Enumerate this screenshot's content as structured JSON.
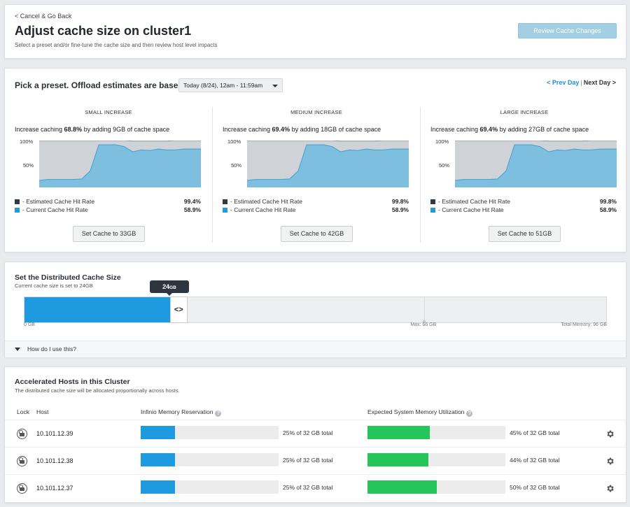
{
  "header": {
    "back_link": "< Cancel & Go Back",
    "title": "Adjust cache size on cluster1",
    "subtitle": "Select a preset and/or fine-tune the cache size and then review host level impacts",
    "review_button": "Review Cache Changes"
  },
  "presets": {
    "heading": "Pick a preset. Offload estimates are based on",
    "date_select": "Today (8/24), 12am - 11:59am",
    "prev_day": "< Prev Day",
    "separator": "|",
    "next_day": "Next Day >",
    "legend_estimated": "- Estimated Cache Hit Rate",
    "legend_current": "- Current Cache Hit Rate",
    "y_label_top": "100%",
    "y_label_mid": "50%",
    "colors": {
      "estimated": "#cfd2d6",
      "current": "#7ebfdf",
      "current_line": "#3f9fd0",
      "estimated_line": "#8a9098",
      "swatch_estimated": "#2c3a4a",
      "swatch_current": "#1e9be0"
    },
    "items": [
      {
        "title": "SMALL INCREASE",
        "desc_pre": "Increase caching ",
        "desc_pct": "68.8%",
        "desc_post": " by adding 9GB of cache space",
        "estimated": "99.4%",
        "current": "58.9%",
        "button": "Set Cache to 33GB"
      },
      {
        "title": "MEDIUM INCREASE",
        "desc_pre": "Increase caching ",
        "desc_pct": "69.4%",
        "desc_post": " by adding 18GB of cache space",
        "estimated": "99.8%",
        "current": "58.9%",
        "button": "Set Cache to 42GB"
      },
      {
        "title": "LARGE INCREASE",
        "desc_pre": "Increase caching ",
        "desc_pct": "69.4%",
        "desc_post": " by adding 27GB of cache space",
        "estimated": "99.8%",
        "current": "58.9%",
        "button": "Set Cache to 51GB"
      }
    ]
  },
  "chart_data": {
    "type": "area",
    "ylim": [
      0,
      100
    ],
    "series": [
      {
        "name": "- Estimated Cache Hit Rate",
        "values": [
          100,
          100,
          100,
          100,
          100,
          100,
          100,
          100,
          100,
          100,
          100,
          99,
          99,
          99,
          99,
          99,
          100,
          100,
          100,
          100
        ]
      },
      {
        "name": "- Current Cache Hit Rate",
        "values": [
          15,
          17,
          17,
          17,
          17,
          18,
          35,
          91,
          91,
          91,
          87,
          76,
          80,
          79,
          82,
          80,
          80,
          82,
          82,
          82
        ]
      }
    ]
  },
  "cache_size": {
    "title": "Set the Distributed Cache Size",
    "subtitle": "Current cache size is set to 24GB",
    "tooltip_value": "24",
    "tooltip_unit": "GB",
    "handle_glyph": "<>",
    "current_gb": 24,
    "max_gb": 66,
    "total_gb": 96,
    "label_min": "0 GB",
    "label_max": "Max: 66 GB",
    "label_total": "Total Memory: 96 GB",
    "help": "How do I use this?",
    "color_fill": "#1e9be0"
  },
  "hosts": {
    "title": "Accelerated Hosts in this Cluster",
    "subtitle": "The distributed cache size will be allocated proportionally across hosts.",
    "col_lock": "Lock",
    "col_host": "Host",
    "col_reservation": "Infinio Memory Reservation",
    "col_utilization": "Expected System Memory Utilization",
    "help_glyph": "?",
    "color_reservation": "#1e9be0",
    "color_utilization": "#25c55a",
    "rows": [
      {
        "host": "10.101.12.39",
        "reservation_pct": 25,
        "reservation_text": "25% of 32 GB total",
        "utilization_pct": 45,
        "utilization_text": "45% of 32 GB total"
      },
      {
        "host": "10.101.12.38",
        "reservation_pct": 25,
        "reservation_text": "25% of 32 GB total",
        "utilization_pct": 44,
        "utilization_text": "44% of 32 GB total"
      },
      {
        "host": "10.101.12.37",
        "reservation_pct": 25,
        "reservation_text": "25% of 32 GB total",
        "utilization_pct": 50,
        "utilization_text": "50% of 32 GB total"
      }
    ]
  }
}
